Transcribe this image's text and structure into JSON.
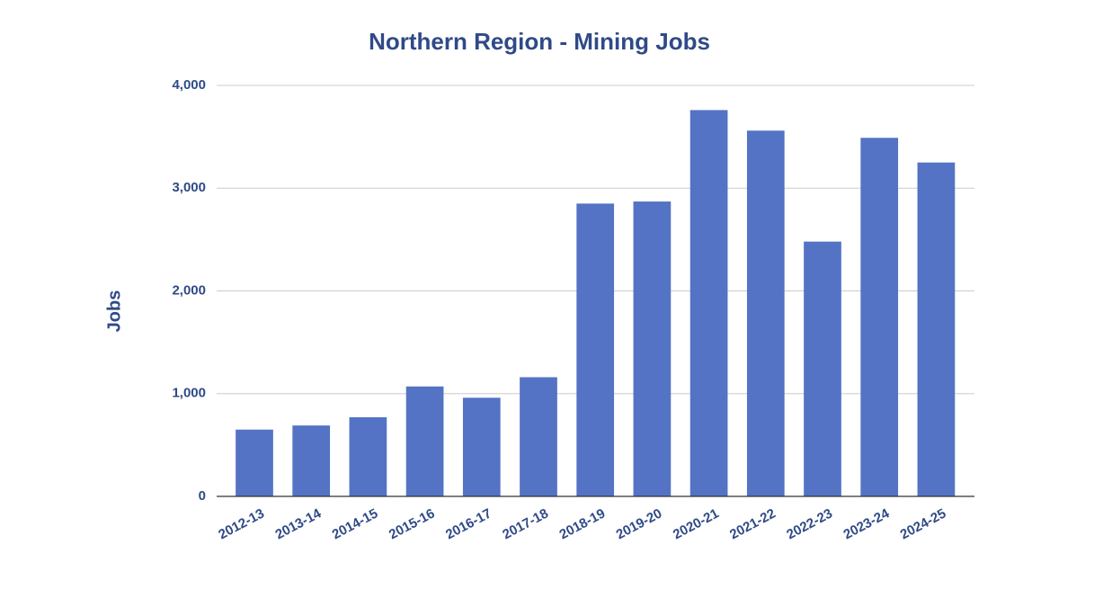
{
  "chart_data": {
    "type": "bar",
    "title": "Northern Region - Mining Jobs",
    "y_label": "Jobs",
    "categories": [
      "2012-13",
      "2013-14",
      "2014-15",
      "2015-16",
      "2016-17",
      "2017-18",
      "2018-19",
      "2019-20",
      "2020-21",
      "2021-22",
      "2022-23",
      "2023-24",
      "2024-25"
    ],
    "values": [
      650,
      690,
      770,
      1070,
      960,
      1160,
      2850,
      2870,
      3760,
      3560,
      2480,
      3490,
      3250
    ],
    "color": "#5473c4",
    "ylim": [
      0,
      4000
    ],
    "yticks": [
      0,
      {
        "value": 1000,
        "label": "1,000"
      },
      {
        "value": 2000,
        "label": "2,000"
      },
      {
        "value": 3000,
        "label": "3,000"
      },
      {
        "value": 4000,
        "label": "4,000"
      }
    ],
    "grid": true
  }
}
